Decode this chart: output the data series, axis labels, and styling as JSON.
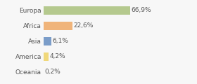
{
  "categories": [
    "Europa",
    "Africa",
    "Asia",
    "America",
    "Oceania"
  ],
  "values": [
    66.9,
    22.6,
    6.1,
    4.2,
    0.2
  ],
  "labels": [
    "66,9%",
    "22,6%",
    "6,1%",
    "4,2%",
    "0,2%"
  ],
  "bar_colors": [
    "#b5c98e",
    "#f0b47a",
    "#7b9dc9",
    "#f0d87a",
    "#c8c8c8"
  ],
  "background_color": "#f7f7f7",
  "xlim": [
    0,
    100
  ],
  "label_fontsize": 6.5,
  "tick_fontsize": 6.5,
  "grid_color": "#ffffff",
  "text_color": "#555555"
}
